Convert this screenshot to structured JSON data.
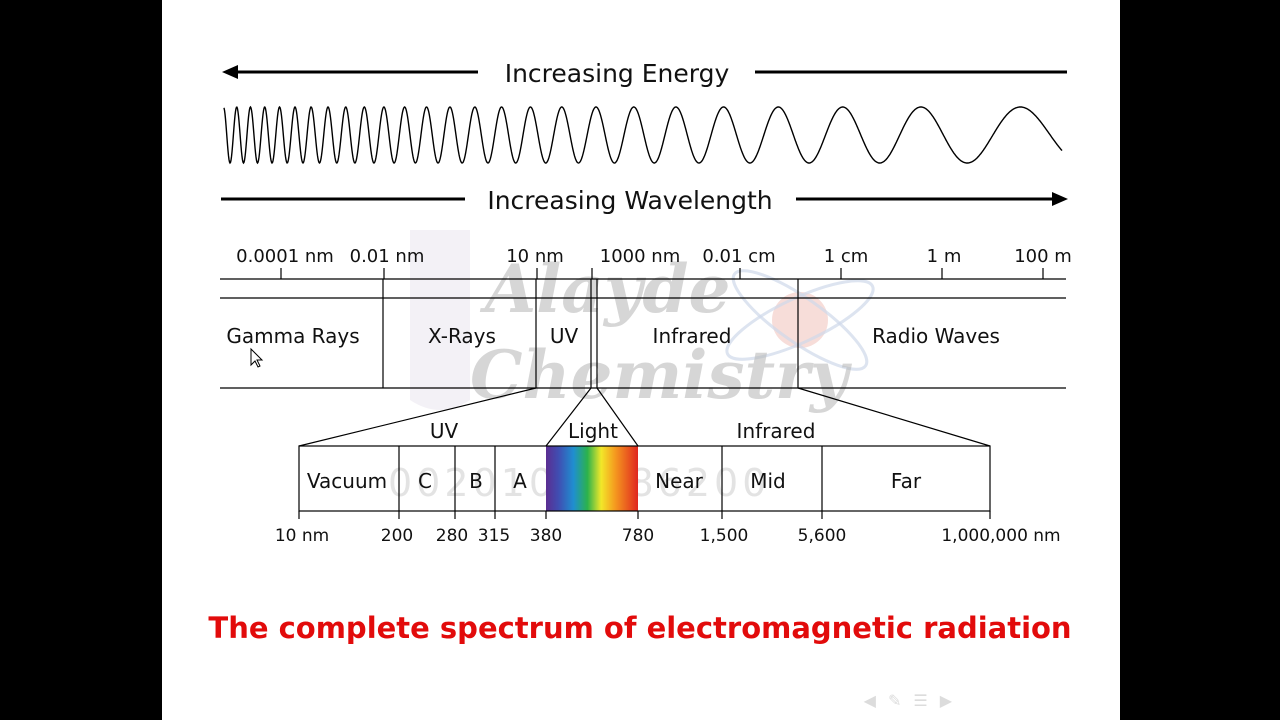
{
  "energy_label": "Increasing Energy",
  "wavelength_label": "Increasing Wavelength",
  "scale_labels": [
    "0.0001 nm",
    "0.01 nm",
    "10 nm",
    "1000 nm",
    "0.01 cm",
    "1 cm",
    "1 m",
    "100 m"
  ],
  "bands": [
    "Gamma Rays",
    "X-Rays",
    "UV",
    "Infrared",
    "Radio Waves"
  ],
  "group_labels": {
    "uv": "UV",
    "light": "Light",
    "infrared": "Infrared"
  },
  "sub_bands": [
    "Vacuum",
    "C",
    "B",
    "A",
    "Near",
    "Mid",
    "Far"
  ],
  "ticks": [
    "10 nm",
    "200",
    "280",
    "315",
    "380",
    "780",
    "1,500",
    "5,600",
    "1,000,000 nm"
  ],
  "watermark": {
    "line1": "Alayde",
    "line2": "Chemistry",
    "number": "002010 0286200"
  },
  "caption": "The complete spectrum of electromagnetic radiation",
  "colors": {
    "caption": "#e20b0b",
    "slide_bg": "#ffffff",
    "frame": "#000000"
  },
  "nav_icons": [
    "prev-icon",
    "pen-icon",
    "menu-icon",
    "next-icon"
  ]
}
